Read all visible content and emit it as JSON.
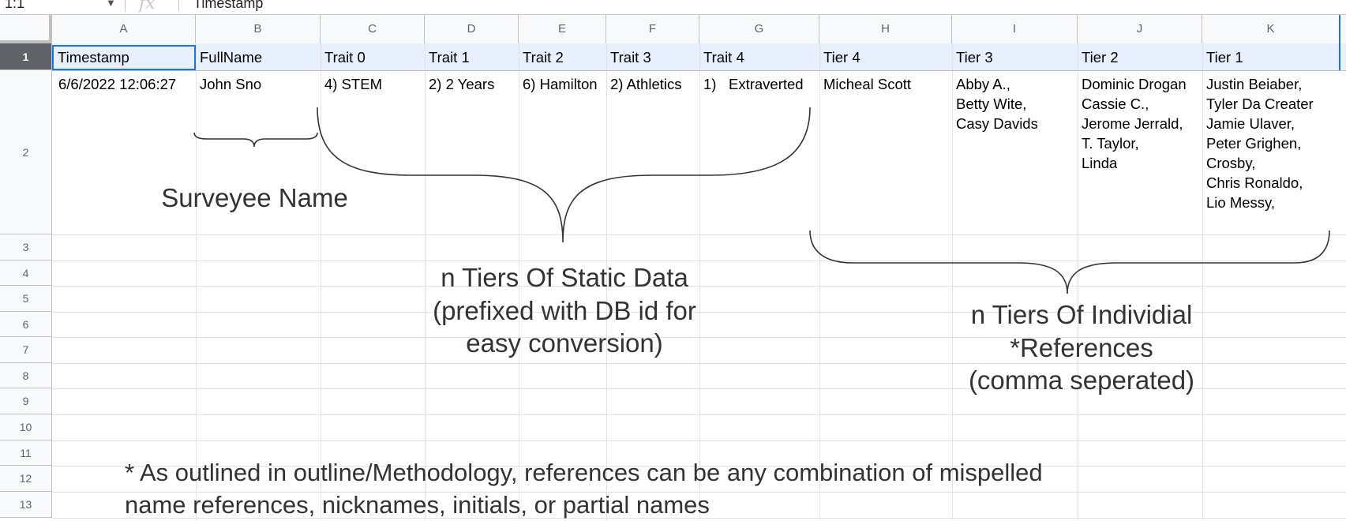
{
  "formula_bar": {
    "name_box": "1:1",
    "fx_icon": "fx-icon",
    "formula": "Timestamp"
  },
  "columns": [
    "A",
    "B",
    "C",
    "D",
    "E",
    "F",
    "G",
    "H",
    "I",
    "J",
    "K"
  ],
  "rows": [
    "1",
    "2",
    "3",
    "4",
    "5",
    "6",
    "7",
    "8",
    "9",
    "10",
    "11",
    "12",
    "13"
  ],
  "header_row": [
    "Timestamp",
    "FullName",
    "Trait 0",
    "Trait 1",
    "Trait 2",
    "Trait 3",
    "Trait 4",
    "Tier 4",
    "Tier 3",
    "Tier 2",
    "Tier 1"
  ],
  "data_row": {
    "timestamp": "6/6/2022 12:06:27",
    "fullname": "John Sno",
    "trait0": "4) STEM",
    "trait1": "2) 2 Years",
    "trait2": "6) Hamilton",
    "trait3": "2) Athletics",
    "trait4_num": "1)",
    "trait4_val": "Extraverted",
    "tier4": [
      "Micheal Scott"
    ],
    "tier3": [
      "Abby A.,",
      "Betty Wite,",
      "Casy Davids"
    ],
    "tier2": [
      "Dominic Drogan",
      "Cassie C.,",
      "Jerome Jerrald,",
      "T. Taylor,",
      "Linda"
    ],
    "tier1": [
      "Justin Beiaber,",
      "Tyler Da Creater",
      "Jamie Ulaver,",
      "Peter Grighen,",
      "Crosby,",
      "Chris Ronaldo,",
      "Lio Messy,"
    ]
  },
  "annotations": {
    "surveyee": "Surveyee Name",
    "static": [
      "n Tiers Of Static Data",
      "(prefixed with DB id for",
      "easy conversion)"
    ],
    "individual": [
      "n Tiers Of Individial",
      "*References",
      "(comma seperated)"
    ],
    "footnote": [
      "* As outlined in outline/Methodology, references can be any combination of mispelled",
      "name references, nicknames, initials, or partial names"
    ]
  },
  "colors": {
    "selection": "#1a73e8",
    "header_bg": "#f8f9fa",
    "row1_bg": "#e8f0fe",
    "grid": "#e2e2e2"
  }
}
